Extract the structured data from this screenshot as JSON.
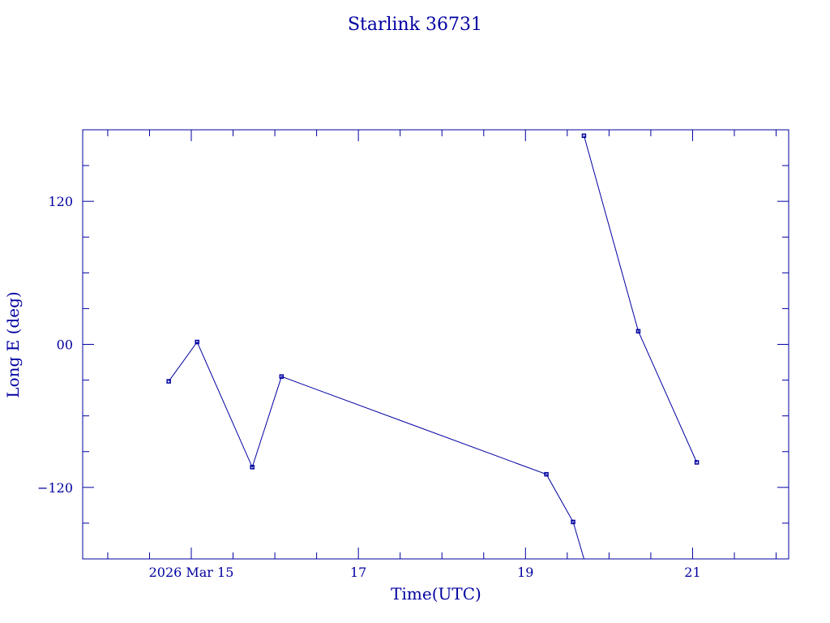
{
  "chart_data": {
    "type": "line",
    "title": "Starlink 36731",
    "xlabel": "Time(UTC)",
    "ylabel": "Long E (deg)",
    "x_unit": "days of March 2026 (UTC)",
    "xlim": [
      13.7,
      22.15
    ],
    "ylim": [
      -180,
      180
    ],
    "x_ticks": [
      {
        "value": 15,
        "label": "2026 Mar 15"
      },
      {
        "value": 17,
        "label": "17"
      },
      {
        "value": 19,
        "label": "19"
      },
      {
        "value": 21,
        "label": "21"
      }
    ],
    "y_ticks": [
      {
        "value": 120,
        "label": "120"
      },
      {
        "value": 0,
        "label": "00"
      },
      {
        "value": -120,
        "label": "−120"
      }
    ],
    "series": [
      {
        "segments": [
          [
            {
              "x": 14.73,
              "y": -31
            },
            {
              "x": 15.07,
              "y": 2
            },
            {
              "x": 15.73,
              "y": -103
            },
            {
              "x": 16.08,
              "y": -27
            },
            {
              "x": 19.25,
              "y": -109
            },
            {
              "x": 19.57,
              "y": -149
            },
            {
              "x": 19.7,
              "y": -180
            }
          ],
          [
            {
              "x": 19.7,
              "y": 175
            },
            {
              "x": 20.35,
              "y": 11
            },
            {
              "x": 21.05,
              "y": -99
            }
          ]
        ]
      }
    ],
    "colors": {
      "ink": "#0000a0",
      "background": "#ffffff"
    },
    "grid": false,
    "legend": "none"
  }
}
